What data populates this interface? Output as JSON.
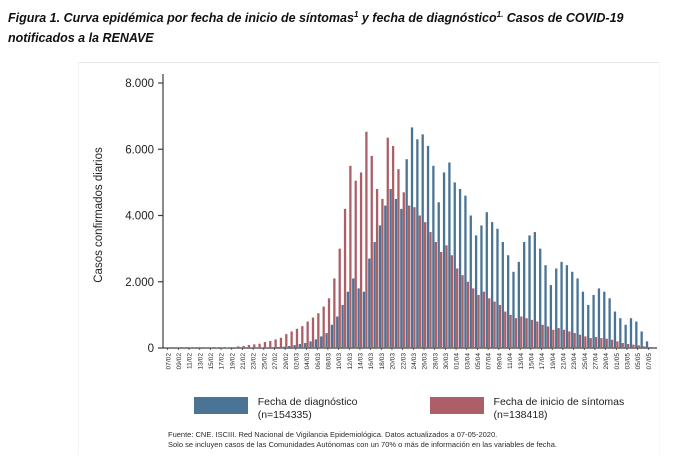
{
  "title": {
    "part1": "Figura 1. Curva epidémica por fecha de inicio de síntomas",
    "sup1": "1",
    "part2": " y fecha de diagnóstico",
    "sup2": "1.",
    "part3": " Casos de COVID-19 notificados a la RENAVE"
  },
  "chart_data": {
    "type": "bar",
    "title": "",
    "xlabel": "",
    "ylabel": "Casos confirmados diarios",
    "ylim": [
      0,
      8000
    ],
    "yticks": [
      "0",
      "2.000",
      "4.000",
      "6.000",
      "8.000"
    ],
    "grid": false,
    "legend_position": "bottom",
    "x": [
      "07/02",
      "08/02",
      "09/02",
      "10/02",
      "11/02",
      "12/02",
      "13/02",
      "14/02",
      "15/02",
      "16/02",
      "17/02",
      "18/02",
      "19/02",
      "20/02",
      "21/02",
      "22/02",
      "23/02",
      "24/02",
      "25/02",
      "26/02",
      "27/02",
      "28/02",
      "29/02",
      "01/03",
      "02/03",
      "03/03",
      "04/03",
      "05/03",
      "06/03",
      "07/03",
      "08/03",
      "09/03",
      "10/03",
      "11/03",
      "12/03",
      "13/03",
      "14/03",
      "15/03",
      "16/03",
      "17/03",
      "18/03",
      "19/03",
      "20/03",
      "21/03",
      "22/03",
      "23/03",
      "24/03",
      "25/03",
      "26/03",
      "27/03",
      "28/03",
      "29/03",
      "30/03",
      "31/03",
      "01/04",
      "02/04",
      "03/04",
      "04/04",
      "05/04",
      "06/04",
      "07/04",
      "08/04",
      "09/04",
      "10/04",
      "11/04",
      "12/04",
      "13/04",
      "14/04",
      "15/04",
      "16/04",
      "17/04",
      "18/04",
      "19/04",
      "20/04",
      "21/04",
      "22/04",
      "23/04",
      "24/04",
      "25/04",
      "26/04",
      "27/04",
      "28/04",
      "29/04",
      "30/04",
      "01/05",
      "02/05",
      "03/05",
      "04/05",
      "05/05",
      "06/05",
      "07/05"
    ],
    "x_tick_every": 2,
    "series": [
      {
        "name": "Fecha de diagnóstico",
        "n_label": "(n=154335)",
        "color": "#4a7496",
        "values": [
          0,
          0,
          0,
          0,
          0,
          0,
          0,
          0,
          0,
          0,
          0,
          0,
          0,
          5,
          5,
          5,
          10,
          10,
          15,
          20,
          25,
          30,
          40,
          60,
          90,
          120,
          150,
          200,
          260,
          350,
          450,
          700,
          950,
          1300,
          1700,
          2100,
          1800,
          1700,
          2700,
          3200,
          3700,
          4300,
          4800,
          4500,
          4200,
          5700,
          6660,
          6300,
          6450,
          6100,
          5500,
          4400,
          5300,
          5600,
          5000,
          4800,
          4600,
          4000,
          3400,
          3700,
          4100,
          3800,
          3600,
          3200,
          2800,
          2300,
          2600,
          3200,
          3400,
          3500,
          3000,
          2500,
          1900,
          2400,
          2600,
          2500,
          2300,
          2100,
          1700,
          1300,
          1600,
          1800,
          1700,
          1500,
          1100,
          900,
          700,
          900,
          800,
          500,
          200
        ]
      },
      {
        "name": "Fecha de inicio de síntomas",
        "n_label": "(n=138418)",
        "color": "#ad5f68",
        "values": [
          5,
          5,
          5,
          5,
          8,
          8,
          10,
          10,
          10,
          12,
          12,
          15,
          20,
          50,
          60,
          90,
          110,
          130,
          180,
          210,
          260,
          310,
          420,
          500,
          580,
          660,
          800,
          920,
          1050,
          1250,
          1500,
          2100,
          3000,
          4200,
          5500,
          5050,
          5300,
          6530,
          5800,
          4800,
          4500,
          6350,
          6100,
          5400,
          4700,
          4300,
          4250,
          4000,
          3800,
          3500,
          3200,
          2900,
          3100,
          2800,
          2400,
          2200,
          2000,
          1800,
          1600,
          1700,
          1500,
          1400,
          1300,
          1100,
          1000,
          900,
          950,
          900,
          850,
          800,
          700,
          650,
          550,
          600,
          550,
          500,
          450,
          400,
          350,
          300,
          330,
          300,
          280,
          250,
          200,
          150,
          120,
          100,
          80,
          50,
          30
        ]
      }
    ]
  },
  "footer": {
    "line1": "Fuente: CNE. ISCIII. Red Nacional de Vigilancia Epidemiológica. Datos actualizados a 07-05-2020.",
    "line2": "Solo se incluyen casos de las Comunidades Autónomas con un 70% o más de información en las variables de fecha."
  }
}
